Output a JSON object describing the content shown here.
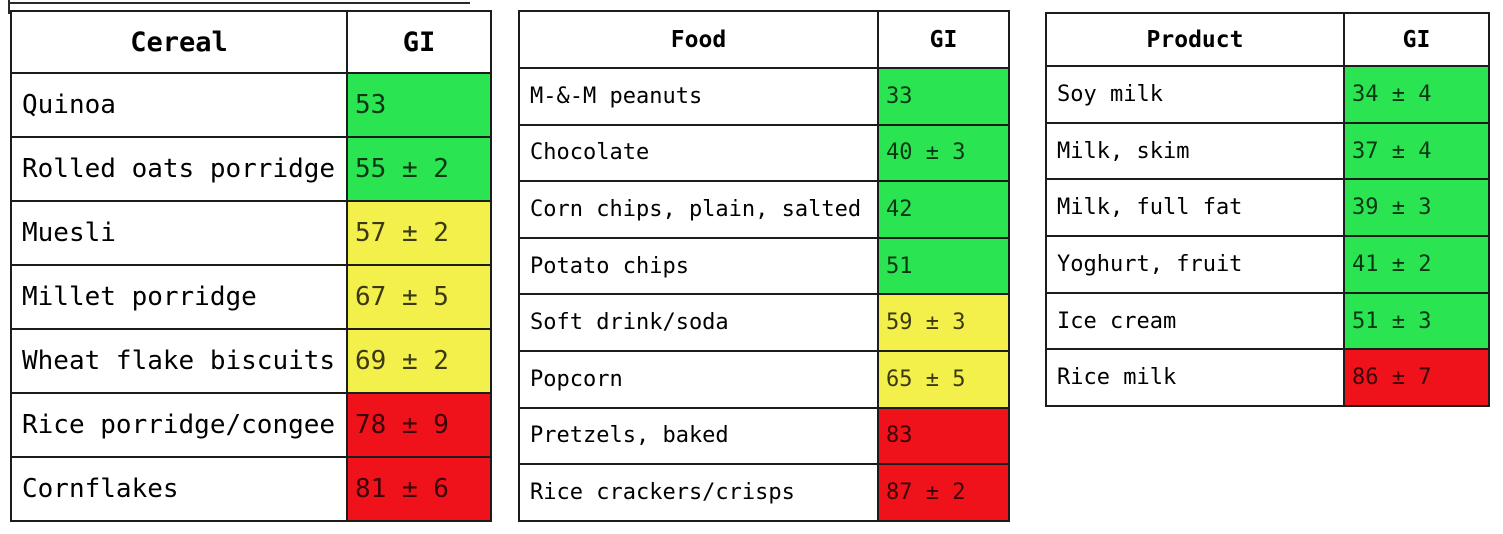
{
  "colors": {
    "low_gi": "#2be452",
    "medium_gi": "#f3ef4b",
    "high_gi": "#f0121b",
    "border": "#1c1c1c"
  },
  "tables": [
    {
      "item_label": "Cereal",
      "gi_label": "GI",
      "rows": [
        {
          "name": "Quinoa",
          "gi": "53",
          "level": "green"
        },
        {
          "name": "Rolled oats porridge",
          "gi": "55 ± 2",
          "level": "green"
        },
        {
          "name": "Muesli",
          "gi": "57 ± 2",
          "level": "yellow"
        },
        {
          "name": "Millet porridge",
          "gi": "67 ± 5",
          "level": "yellow"
        },
        {
          "name": "Wheat flake biscuits",
          "gi": "69 ± 2",
          "level": "yellow"
        },
        {
          "name": "Rice porridge/congee",
          "gi": "78 ± 9",
          "level": "red"
        },
        {
          "name": "Cornflakes",
          "gi": "81 ± 6",
          "level": "red"
        }
      ]
    },
    {
      "item_label": "Food",
      "gi_label": "GI",
      "rows": [
        {
          "name": "M-&-M peanuts",
          "gi": "33",
          "level": "green"
        },
        {
          "name": "Chocolate",
          "gi": "40 ± 3",
          "level": "green"
        },
        {
          "name": "Corn chips, plain, salted",
          "gi": "42",
          "level": "green"
        },
        {
          "name": "Potato chips",
          "gi": "51",
          "level": "green"
        },
        {
          "name": "Soft drink/soda",
          "gi": "59 ± 3",
          "level": "yellow"
        },
        {
          "name": "Popcorn",
          "gi": "65 ± 5",
          "level": "yellow"
        },
        {
          "name": "Pretzels, baked",
          "gi": "83",
          "level": "red"
        },
        {
          "name": "Rice crackers/crisps",
          "gi": "87 ± 2",
          "level": "red"
        }
      ]
    },
    {
      "item_label": "Product",
      "gi_label": "GI",
      "rows": [
        {
          "name": "Soy milk",
          "gi": "34 ± 4",
          "level": "green"
        },
        {
          "name": "Milk, skim",
          "gi": "37 ± 4",
          "level": "green"
        },
        {
          "name": "Milk, full fat",
          "gi": "39 ± 3",
          "level": "green"
        },
        {
          "name": "Yoghurt, fruit",
          "gi": "41 ± 2",
          "level": "green"
        },
        {
          "name": "Ice cream",
          "gi": "51 ± 3",
          "level": "green"
        },
        {
          "name": "Rice milk",
          "gi": "86 ± 7",
          "level": "red"
        }
      ]
    }
  ]
}
